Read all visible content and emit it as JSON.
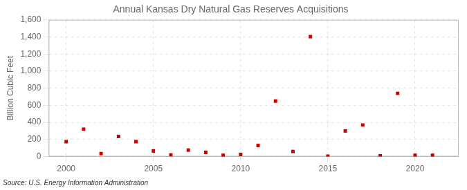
{
  "chart_data": {
    "type": "scatter",
    "title": "Annual Kansas Dry Natural Gas Reserves Acquisitions",
    "ylabel": "Billion Cubic Feet",
    "annotation": "Source: U.S. Energy Information Administration",
    "x": [
      2000,
      2001,
      2002,
      2003,
      2004,
      2005,
      2006,
      2007,
      2008,
      2009,
      2010,
      2011,
      2012,
      2013,
      2014,
      2015,
      2016,
      2017,
      2018,
      2019,
      2020,
      2021
    ],
    "values": [
      175,
      320,
      35,
      235,
      175,
      65,
      20,
      75,
      50,
      15,
      25,
      130,
      650,
      60,
      1405,
      5,
      300,
      370,
      10,
      740,
      15,
      15
    ],
    "color": "#cc0000",
    "marker": "square",
    "xlim": [
      1999.0,
      2022.5
    ],
    "xticks": [
      2000,
      2005,
      2010,
      2015,
      2020
    ],
    "ylim": [
      0,
      1600
    ],
    "yticks": [
      0,
      200,
      400,
      600,
      800,
      {
        "value": 1000,
        "label": "1,000"
      },
      {
        "value": 1200,
        "label": "1,200"
      },
      {
        "value": 1400,
        "label": "1,400"
      },
      {
        "value": 1600,
        "label": "1,600"
      }
    ],
    "grid": true
  }
}
